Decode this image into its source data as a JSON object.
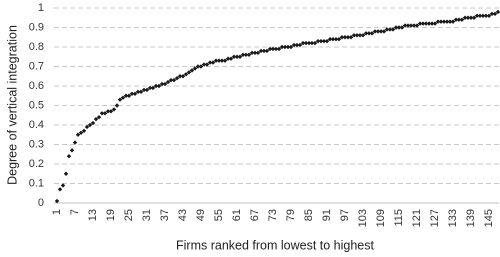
{
  "chart_data": {
    "type": "scatter",
    "x_label": "Firms ranked from lowest to highest",
    "y_label": "Degree of vertical integration",
    "color": "#1a1a1a",
    "grid": true,
    "xlim": [
      0,
      149
    ],
    "ylim": [
      0,
      1
    ],
    "xticks": [
      1,
      7,
      13,
      19,
      25,
      31,
      37,
      43,
      49,
      55,
      61,
      67,
      73,
      79,
      85,
      91,
      97,
      103,
      109,
      115,
      121,
      127,
      133,
      139,
      145
    ],
    "yticks": [
      0,
      0.1,
      0.2,
      0.3,
      0.4,
      0.5,
      0.6,
      0.7,
      0.8,
      0.9,
      1
    ],
    "x": [
      1,
      2,
      3,
      4,
      5,
      6,
      7,
      8,
      9,
      10,
      11,
      12,
      13,
      14,
      15,
      16,
      17,
      18,
      19,
      20,
      21,
      22,
      23,
      24,
      25,
      26,
      27,
      28,
      29,
      30,
      31,
      32,
      33,
      34,
      35,
      36,
      37,
      38,
      39,
      40,
      41,
      42,
      43,
      44,
      45,
      46,
      47,
      48,
      49,
      50,
      51,
      52,
      53,
      54,
      55,
      56,
      57,
      58,
      59,
      60,
      61,
      62,
      63,
      64,
      65,
      66,
      67,
      68,
      69,
      70,
      71,
      72,
      73,
      74,
      75,
      76,
      77,
      78,
      79,
      80,
      81,
      82,
      83,
      84,
      85,
      86,
      87,
      88,
      89,
      90,
      91,
      92,
      93,
      94,
      95,
      96,
      97,
      98,
      99,
      100,
      101,
      102,
      103,
      104,
      105,
      106,
      107,
      108,
      109,
      110,
      111,
      112,
      113,
      114,
      115,
      116,
      117,
      118,
      119,
      120,
      121,
      122,
      123,
      124,
      125,
      126,
      127,
      128,
      129,
      130,
      131,
      132,
      133,
      134,
      135,
      136,
      137,
      138,
      139,
      140,
      141,
      142,
      143,
      144,
      145,
      146,
      147,
      148
    ],
    "values": [
      0.01,
      0.07,
      0.09,
      0.15,
      0.24,
      0.27,
      0.31,
      0.35,
      0.36,
      0.37,
      0.39,
      0.4,
      0.41,
      0.43,
      0.44,
      0.46,
      0.46,
      0.47,
      0.47,
      0.48,
      0.5,
      0.53,
      0.54,
      0.55,
      0.55,
      0.56,
      0.56,
      0.57,
      0.57,
      0.58,
      0.58,
      0.59,
      0.59,
      0.6,
      0.6,
      0.61,
      0.61,
      0.62,
      0.63,
      0.63,
      0.64,
      0.65,
      0.65,
      0.66,
      0.67,
      0.68,
      0.69,
      0.7,
      0.7,
      0.71,
      0.71,
      0.72,
      0.72,
      0.73,
      0.73,
      0.73,
      0.73,
      0.74,
      0.74,
      0.75,
      0.75,
      0.75,
      0.76,
      0.76,
      0.76,
      0.77,
      0.77,
      0.77,
      0.78,
      0.78,
      0.78,
      0.79,
      0.79,
      0.79,
      0.79,
      0.8,
      0.8,
      0.8,
      0.8,
      0.81,
      0.81,
      0.81,
      0.82,
      0.82,
      0.82,
      0.82,
      0.82,
      0.83,
      0.83,
      0.83,
      0.83,
      0.84,
      0.84,
      0.84,
      0.84,
      0.85,
      0.85,
      0.85,
      0.85,
      0.86,
      0.86,
      0.86,
      0.86,
      0.87,
      0.87,
      0.87,
      0.88,
      0.88,
      0.88,
      0.88,
      0.89,
      0.89,
      0.89,
      0.9,
      0.9,
      0.9,
      0.91,
      0.91,
      0.91,
      0.91,
      0.91,
      0.92,
      0.92,
      0.92,
      0.92,
      0.92,
      0.92,
      0.93,
      0.93,
      0.93,
      0.93,
      0.93,
      0.93,
      0.94,
      0.94,
      0.94,
      0.95,
      0.95,
      0.95,
      0.95,
      0.96,
      0.96,
      0.96,
      0.96,
      0.96,
      0.97,
      0.97,
      0.98
    ]
  }
}
